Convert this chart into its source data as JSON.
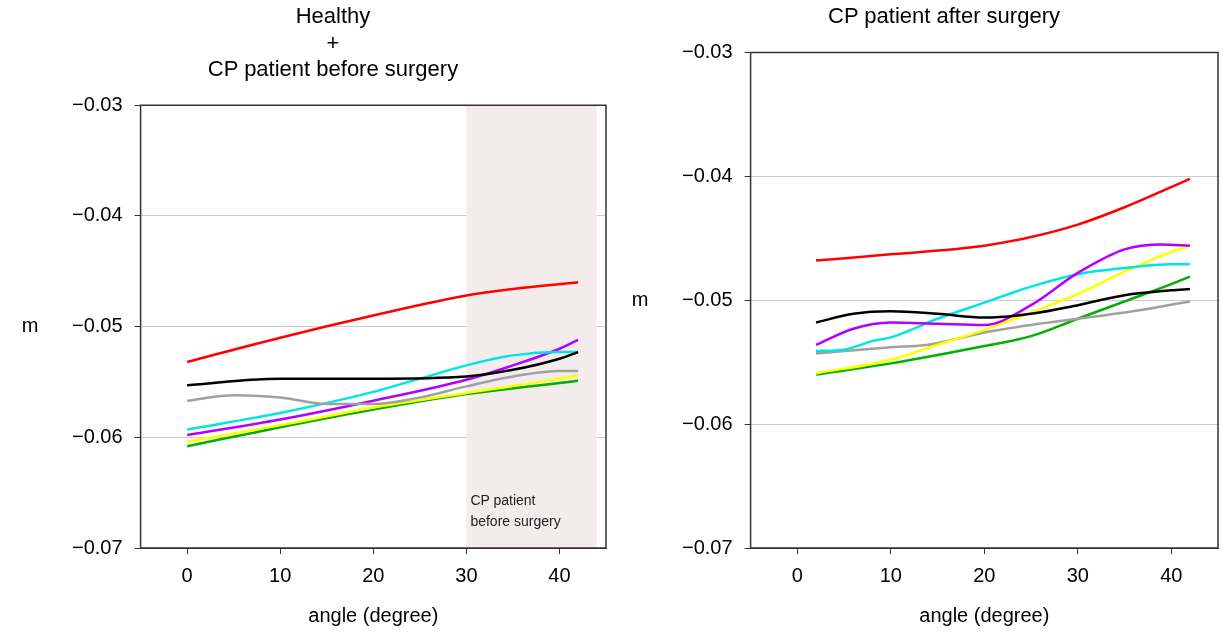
{
  "chart_data": [
    {
      "type": "line",
      "title": "Healthy\n+\nCP patient before surgery",
      "xlabel": "angle (degree)",
      "ylabel": "m",
      "xlim": [
        -5,
        45
      ],
      "ylim": [
        -0.07,
        -0.03
      ],
      "xticks": [
        0,
        10,
        20,
        30,
        40
      ],
      "yticks": [
        {
          "value": -0.07,
          "label": "−0.07"
        },
        {
          "value": -0.06,
          "label": "−0.06"
        },
        {
          "value": -0.05,
          "label": "−0.05"
        },
        {
          "value": -0.04,
          "label": "−0.04"
        },
        {
          "value": -0.03,
          "label": "−0.03"
        }
      ],
      "grid": "y",
      "legend": false,
      "marker": "none",
      "line_style": "solid",
      "bands": [
        {
          "axis": "x",
          "from": 30,
          "to": 44,
          "label": "CP patient\nbefore surgery",
          "color": "#f4ecec"
        }
      ],
      "series": [
        {
          "color": "#ff0000",
          "x": [
            0,
            10,
            20,
            30,
            35,
            42
          ],
          "values": [
            -0.0532,
            -0.051,
            -0.049,
            -0.0472,
            -0.0466,
            -0.046
          ]
        },
        {
          "color": "#000000",
          "x": [
            0,
            10,
            20,
            30,
            35,
            40,
            42
          ],
          "values": [
            -0.0553,
            -0.0547,
            -0.0547,
            -0.0545,
            -0.0539,
            -0.0529,
            -0.0523
          ]
        },
        {
          "color": "#a0a0a0",
          "x": [
            0,
            5,
            10,
            15,
            20,
            25,
            30,
            35,
            40,
            42
          ],
          "values": [
            -0.0567,
            -0.0562,
            -0.0564,
            -0.057,
            -0.057,
            -0.0564,
            -0.0554,
            -0.0545,
            -0.054,
            -0.054
          ]
        },
        {
          "color": "#00e5e5",
          "x": [
            0,
            10,
            20,
            25,
            30,
            35,
            40,
            42
          ],
          "values": [
            -0.0593,
            -0.0578,
            -0.0559,
            -0.0547,
            -0.0535,
            -0.0526,
            -0.0523,
            -0.0523
          ]
        },
        {
          "color": "#b400ff",
          "x": [
            0,
            10,
            20,
            30,
            35,
            40,
            42
          ],
          "values": [
            -0.0598,
            -0.0584,
            -0.0567,
            -0.0548,
            -0.0535,
            -0.052,
            -0.0512
          ]
        },
        {
          "color": "#ffff00",
          "x": [
            0,
            10,
            20,
            30,
            40,
            42
          ],
          "values": [
            -0.0604,
            -0.0589,
            -0.0573,
            -0.056,
            -0.0547,
            -0.0544
          ]
        },
        {
          "color": "#00b000",
          "x": [
            0,
            10,
            20,
            30,
            40,
            42
          ],
          "values": [
            -0.0608,
            -0.0591,
            -0.0575,
            -0.0561,
            -0.0551,
            -0.0549
          ]
        }
      ]
    },
    {
      "type": "line",
      "title": "CP patient after surgery",
      "xlabel": "angle (degree)",
      "ylabel": "m",
      "xlim": [
        -5,
        45
      ],
      "ylim": [
        -0.07,
        -0.03
      ],
      "xticks": [
        0,
        10,
        20,
        30,
        40
      ],
      "yticks": [
        {
          "value": -0.07,
          "label": "−0.07"
        },
        {
          "value": -0.06,
          "label": "−0.06"
        },
        {
          "value": -0.05,
          "label": "−0.05"
        },
        {
          "value": -0.04,
          "label": "−0.04"
        },
        {
          "value": -0.03,
          "label": "−0.03"
        }
      ],
      "grid": "y",
      "legend": false,
      "marker": "none",
      "line_style": "solid",
      "series": [
        {
          "color": "#ff0000",
          "x": [
            2,
            10,
            20,
            25,
            30,
            35,
            42
          ],
          "values": [
            -0.0468,
            -0.0463,
            -0.0456,
            -0.0449,
            -0.0439,
            -0.0425,
            -0.0402
          ]
        },
        {
          "color": "#000000",
          "x": [
            2,
            6,
            10,
            15,
            20,
            25,
            30,
            35,
            40,
            42
          ],
          "values": [
            -0.0518,
            -0.0511,
            -0.0509,
            -0.0511,
            -0.0514,
            -0.0511,
            -0.0504,
            -0.0496,
            -0.0492,
            -0.0491
          ]
        },
        {
          "color": "#b400ff",
          "x": [
            2,
            6,
            10,
            15,
            20,
            25,
            30,
            35,
            39,
            42
          ],
          "values": [
            -0.0536,
            -0.0523,
            -0.0518,
            -0.0519,
            -0.052,
            -0.0504,
            -0.0478,
            -0.0459,
            -0.0455,
            -0.0456
          ]
        },
        {
          "color": "#00e5e5",
          "x": [
            2,
            5,
            8,
            10,
            15,
            20,
            25,
            30,
            35,
            40,
            42
          ],
          "values": [
            -0.0541,
            -0.054,
            -0.0533,
            -0.053,
            -0.0515,
            -0.0502,
            -0.0489,
            -0.0479,
            -0.0474,
            -0.0471,
            -0.0471
          ]
        },
        {
          "color": "#ffff00",
          "x": [
            2,
            10,
            15,
            20,
            25,
            30,
            35,
            40,
            42
          ],
          "values": [
            -0.0559,
            -0.0548,
            -0.0536,
            -0.0524,
            -0.051,
            -0.0495,
            -0.0477,
            -0.0461,
            -0.0456
          ]
        },
        {
          "color": "#a0a0a0",
          "x": [
            2,
            10,
            14,
            20,
            25,
            30,
            35,
            42
          ],
          "values": [
            -0.0543,
            -0.0538,
            -0.0536,
            -0.0526,
            -0.052,
            -0.0515,
            -0.051,
            -0.0501
          ]
        },
        {
          "color": "#00b000",
          "x": [
            2,
            10,
            20,
            25,
            30,
            35,
            40,
            42
          ],
          "values": [
            -0.056,
            -0.0551,
            -0.0537,
            -0.0529,
            -0.0515,
            -0.0501,
            -0.0487,
            -0.0481
          ]
        }
      ]
    }
  ]
}
